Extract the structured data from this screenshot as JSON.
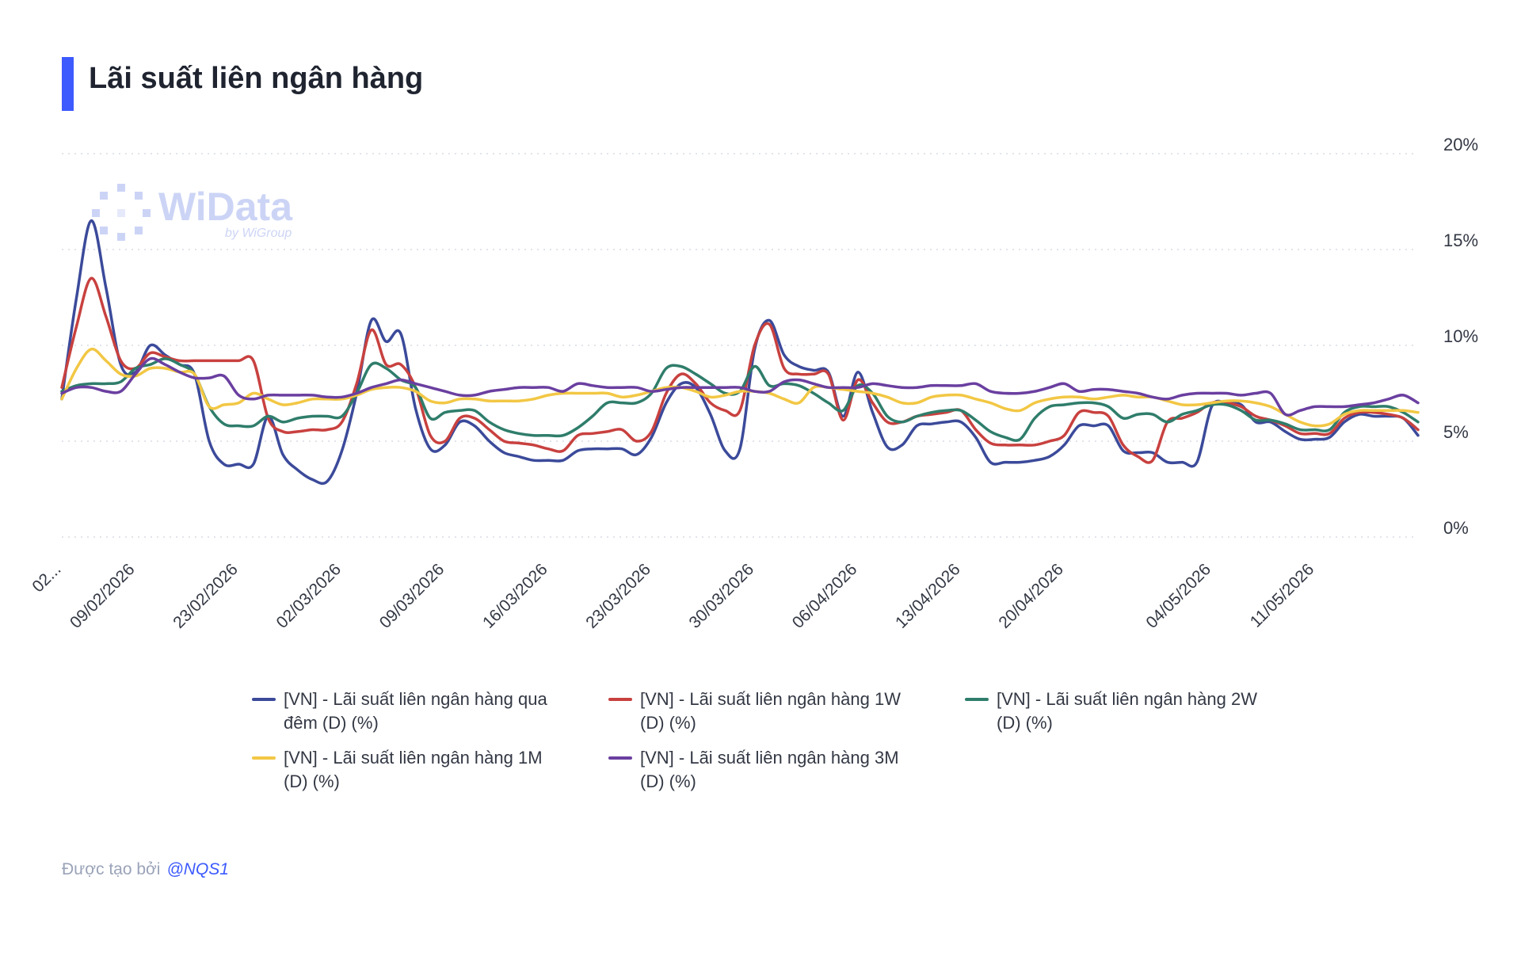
{
  "header": {
    "title": "Lãi suất liên ngân hàng"
  },
  "watermark": {
    "brand": "WiData",
    "sub": "by WiGroup"
  },
  "footer": {
    "prefix": "Được tạo bởi",
    "handle": "@NQS1"
  },
  "colors": {
    "accent": "#3d5afe",
    "grid": "#d8dbe3"
  },
  "chart_data": {
    "type": "line",
    "title": "Lãi suất liên ngân hàng",
    "xlabel": "",
    "ylabel": "",
    "ylim": [
      0,
      20
    ],
    "yticks": [
      "0%",
      "5%",
      "10%",
      "15%",
      "20%"
    ],
    "y_axis_position": "right",
    "grid": true,
    "legend_position": "bottom",
    "xticks": [
      "02...",
      "09/02/2026",
      "23/02/2026",
      "02/03/2026",
      "09/03/2026",
      "16/03/2026",
      "23/03/2026",
      "30/03/2026",
      "06/04/2026",
      "13/04/2026",
      "20/04/2026",
      "04/05/2026",
      "11/05/2026"
    ],
    "xtick_index": [
      0,
      5,
      12,
      19,
      26,
      33,
      40,
      47,
      54,
      61,
      68,
      78,
      85
    ],
    "series": [
      {
        "name": "[VN] - Lãi suất liên ngân hàng qua đêm (D) (%)",
        "color": "#3b4a9a",
        "values": [
          7.2,
          12.5,
          16.5,
          13.0,
          9.0,
          8.6,
          10.0,
          9.5,
          9.0,
          8.5,
          5.0,
          3.8,
          3.8,
          3.8,
          6.3,
          4.3,
          3.5,
          3.0,
          2.9,
          4.5,
          7.5,
          11.3,
          10.2,
          10.6,
          6.7,
          4.6,
          4.8,
          6.0,
          5.8,
          5.0,
          4.4,
          4.2,
          4.0,
          4.0,
          4.0,
          4.5,
          4.6,
          4.6,
          4.6,
          4.3,
          5.2,
          7.0,
          8.0,
          7.8,
          6.4,
          4.5,
          4.6,
          9.8,
          11.3,
          9.5,
          8.9,
          8.7,
          8.6,
          6.3,
          8.6,
          6.5,
          4.7,
          4.8,
          5.8,
          5.9,
          6.0,
          6.0,
          5.2,
          3.9,
          3.9,
          3.9,
          4.0,
          4.2,
          4.8,
          5.8,
          5.8,
          5.8,
          4.5,
          4.4,
          4.4,
          3.9,
          3.9,
          3.9,
          6.8,
          7.0,
          6.9,
          6.0,
          6.0,
          5.5,
          5.1,
          5.1,
          5.2,
          6.0,
          6.4,
          6.3,
          6.3,
          6.2,
          5.3
        ]
      },
      {
        "name": "[VN] - Lãi suất liên ngân hàng 1W (D) (%)",
        "color": "#c8413f",
        "values": [
          7.8,
          11.0,
          13.5,
          11.5,
          9.2,
          8.8,
          9.6,
          9.4,
          9.2,
          9.2,
          9.2,
          9.2,
          9.2,
          9.2,
          6.2,
          5.5,
          5.5,
          5.6,
          5.6,
          6.0,
          8.0,
          10.8,
          9.0,
          9.0,
          7.8,
          5.3,
          5.0,
          6.2,
          6.2,
          5.6,
          5.0,
          4.9,
          4.8,
          4.6,
          4.5,
          5.3,
          5.4,
          5.5,
          5.6,
          5.0,
          5.5,
          7.5,
          8.5,
          8.0,
          7.0,
          6.6,
          6.6,
          10.0,
          11.1,
          8.8,
          8.5,
          8.5,
          8.5,
          6.1,
          8.2,
          7.0,
          6.0,
          6.0,
          6.3,
          6.4,
          6.5,
          6.6,
          5.6,
          4.9,
          4.8,
          4.8,
          4.8,
          5.0,
          5.3,
          6.5,
          6.5,
          6.3,
          4.8,
          4.2,
          4.0,
          6.0,
          6.2,
          6.5,
          7.0,
          7.0,
          6.8,
          6.3,
          6.1,
          5.8,
          5.4,
          5.4,
          5.4,
          6.2,
          6.5,
          6.5,
          6.4,
          6.2,
          5.6
        ]
      },
      {
        "name": "[VN] - Lãi suất liên ngân hàng 2W (D) (%)",
        "color": "#2f7d6b",
        "values": [
          7.6,
          7.9,
          8.0,
          8.0,
          8.1,
          8.8,
          9.0,
          9.3,
          9.0,
          8.5,
          6.8,
          5.9,
          5.8,
          5.8,
          6.3,
          6.0,
          6.2,
          6.3,
          6.3,
          6.3,
          7.5,
          9.0,
          8.8,
          8.2,
          7.8,
          6.2,
          6.5,
          6.6,
          6.6,
          6.0,
          5.6,
          5.4,
          5.3,
          5.3,
          5.3,
          5.7,
          6.3,
          7.0,
          7.0,
          7.0,
          7.5,
          8.8,
          8.9,
          8.5,
          8.0,
          7.5,
          7.6,
          8.9,
          7.9,
          8.0,
          7.9,
          7.5,
          7.0,
          6.6,
          7.9,
          7.5,
          6.3,
          6.0,
          6.3,
          6.5,
          6.6,
          6.6,
          6.1,
          5.5,
          5.2,
          5.1,
          6.2,
          6.8,
          6.9,
          7.0,
          7.0,
          6.8,
          6.2,
          6.4,
          6.4,
          6.0,
          6.4,
          6.6,
          6.9,
          6.9,
          6.6,
          6.1,
          6.1,
          5.9,
          5.6,
          5.6,
          5.6,
          6.5,
          6.8,
          6.8,
          6.8,
          6.5,
          6.0
        ]
      },
      {
        "name": "[VN] - Lãi suất liên ngân hàng 1M (D) (%)",
        "color": "#f2c744",
        "values": [
          7.2,
          8.8,
          9.8,
          9.2,
          8.5,
          8.4,
          8.8,
          8.8,
          8.6,
          8.5,
          6.8,
          6.9,
          7.0,
          7.5,
          7.2,
          6.9,
          7.0,
          7.2,
          7.2,
          7.2,
          7.4,
          7.7,
          7.8,
          7.8,
          7.6,
          7.1,
          7.0,
          7.2,
          7.2,
          7.1,
          7.1,
          7.1,
          7.2,
          7.4,
          7.5,
          7.5,
          7.5,
          7.5,
          7.3,
          7.4,
          7.6,
          7.8,
          7.8,
          7.6,
          7.3,
          7.4,
          7.6,
          7.6,
          7.5,
          7.2,
          7.0,
          7.8,
          7.8,
          7.7,
          7.6,
          7.5,
          7.3,
          7.0,
          7.0,
          7.3,
          7.4,
          7.4,
          7.2,
          7.0,
          6.7,
          6.6,
          7.0,
          7.2,
          7.3,
          7.3,
          7.2,
          7.3,
          7.4,
          7.3,
          7.3,
          7.1,
          6.9,
          6.9,
          7.0,
          7.1,
          7.1,
          7.0,
          6.8,
          6.4,
          6.0,
          5.8,
          5.9,
          6.4,
          6.6,
          6.6,
          6.6,
          6.6,
          6.5
        ]
      },
      {
        "name": "[VN] - Lãi suất liên ngân hàng 3M (D) (%)",
        "color": "#6a3fa0",
        "values": [
          7.5,
          7.8,
          7.8,
          7.6,
          7.6,
          8.5,
          9.3,
          9.0,
          8.6,
          8.3,
          8.3,
          8.4,
          7.4,
          7.2,
          7.4,
          7.4,
          7.4,
          7.4,
          7.3,
          7.3,
          7.5,
          7.8,
          8.0,
          8.2,
          8.0,
          7.8,
          7.6,
          7.4,
          7.4,
          7.6,
          7.7,
          7.8,
          7.8,
          7.8,
          7.6,
          8.0,
          7.9,
          7.8,
          7.8,
          7.8,
          7.6,
          7.7,
          7.8,
          7.8,
          7.8,
          7.8,
          7.8,
          7.6,
          7.6,
          8.1,
          8.2,
          8.0,
          7.8,
          7.8,
          7.8,
          8.0,
          7.9,
          7.8,
          7.8,
          7.9,
          7.9,
          7.9,
          8.0,
          7.6,
          7.5,
          7.5,
          7.6,
          7.8,
          8.0,
          7.6,
          7.7,
          7.7,
          7.6,
          7.5,
          7.3,
          7.2,
          7.4,
          7.5,
          7.5,
          7.5,
          7.4,
          7.5,
          7.5,
          6.4,
          6.6,
          6.8,
          6.8,
          6.8,
          6.9,
          7.0,
          7.2,
          7.4,
          7.0
        ]
      }
    ]
  }
}
